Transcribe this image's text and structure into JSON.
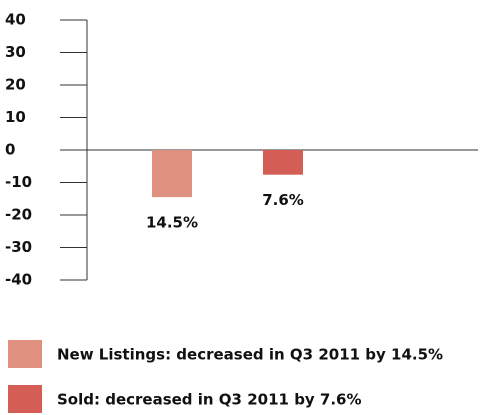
{
  "chart_data": {
    "type": "bar",
    "categories": [
      null,
      null
    ],
    "series": [
      {
        "name": "New Listings: decreased in Q3 2011 by 14.5%",
        "color": "#e0907f",
        "values": [
          -14.5,
          null
        ],
        "value_labels": [
          "14.5%",
          null
        ]
      },
      {
        "name": "Sold: decreased in Q3 2011 by 7.6%",
        "color": "#d45d55",
        "values": [
          null,
          -7.6
        ],
        "value_labels": [
          null,
          "7.6%"
        ]
      }
    ],
    "ylim": [
      -40,
      40
    ],
    "yticks": [
      40,
      30,
      20,
      10,
      0,
      -10,
      -20,
      -30,
      -40
    ]
  }
}
